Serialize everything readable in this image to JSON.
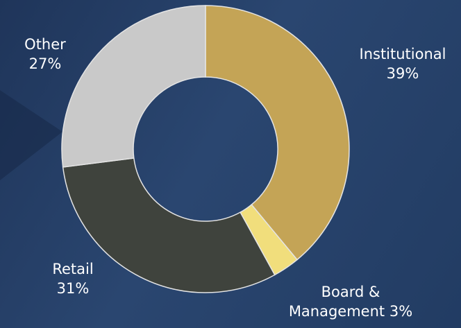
{
  "chart_data": {
    "type": "donut",
    "categories": [
      "Institutional",
      "Board & Management",
      "Retail",
      "Other"
    ],
    "values": [
      39,
      3,
      31,
      27
    ],
    "value_labels": [
      "39%",
      "3%",
      "31%",
      "27%"
    ],
    "colors": [
      "#c4a456",
      "#f1de7c",
      "#3f433d",
      "#c9c9c9"
    ]
  }
}
